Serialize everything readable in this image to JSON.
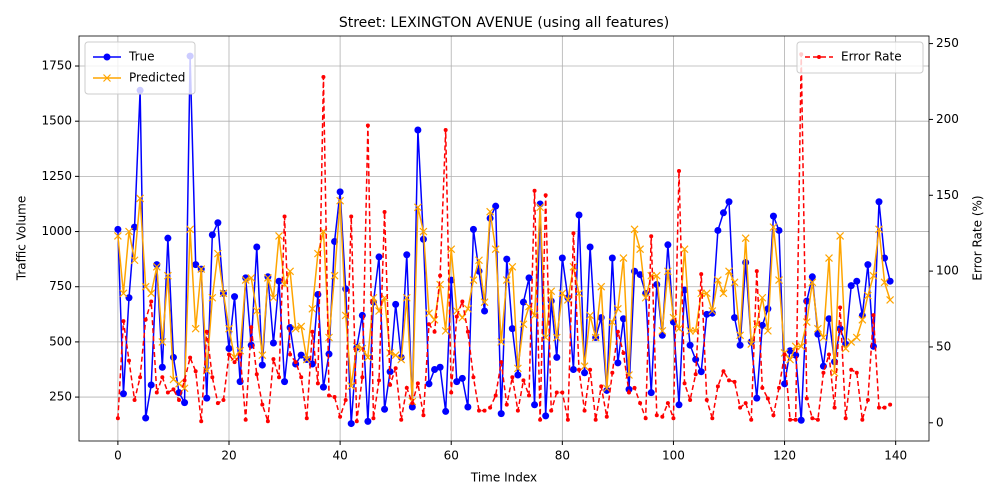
{
  "chart_data": {
    "type": "line",
    "title": "Street: LEXINGTON AVENUE (using all features)",
    "xlabel": "Time Index",
    "ylabel": "Traffic Volume",
    "y2label": "Error Rate (%)",
    "xlim": [
      -7,
      146
    ],
    "xticks": [
      0,
      20,
      40,
      60,
      80,
      100,
      120,
      140
    ],
    "ylim": [
      51,
      1886
    ],
    "yticks": [
      250,
      500,
      750,
      1000,
      1250,
      1500,
      1750
    ],
    "y2lim": [
      -12,
      255
    ],
    "y2ticks": [
      0,
      50,
      100,
      150,
      200,
      250
    ],
    "grid": true,
    "legend": "upper left",
    "legend2": "upper right",
    "series": [
      {
        "name": "True",
        "color": "#0000ff",
        "marker": "o",
        "linestyle": "solid",
        "axis": "y",
        "values": [
          1010,
          265,
          700,
          1020,
          1640,
          155,
          305,
          850,
          385,
          970,
          430,
          270,
          225,
          1795,
          850,
          830,
          245,
          985,
          1040,
          720,
          470,
          705,
          320,
          790,
          485,
          930,
          395,
          795,
          495,
          775,
          320,
          565,
          400,
          440,
          420,
          400,
          715,
          295,
          445,
          955,
          1180,
          740,
          130,
          475,
          620,
          140,
          680,
          885,
          195,
          365,
          670,
          430,
          895,
          205,
          1460,
          965,
          310,
          375,
          385,
          185,
          780,
          320,
          335,
          205,
          1010,
          820,
          640,
          1060,
          1115,
          175,
          875,
          560,
          350,
          680,
          790,
          215,
          1125,
          165,
          685,
          430,
          880,
          700,
          375,
          1075,
          360,
          930,
          520,
          610,
          280,
          880,
          405,
          605,
          285,
          820,
          805,
          720,
          270,
          760,
          530,
          940,
          590,
          215,
          735,
          485,
          420,
          365,
          625,
          630,
          1005,
          1085,
          1135,
          610,
          485,
          860,
          500,
          245,
          575,
          650,
          1070,
          1005,
          310,
          460,
          440,
          145,
          685,
          795,
          535,
          390,
          605,
          410,
          560,
          490,
          755,
          775,
          620,
          850,
          480,
          1135,
          880,
          775
        ]
      },
      {
        "name": "Predicted",
        "color": "#ffa500",
        "marker": "x",
        "linestyle": "solid",
        "axis": "y",
        "values": [
          980,
          720,
          1000,
          870,
          1150,
          750,
          720,
          840,
          500,
          800,
          330,
          310,
          290,
          1010,
          560,
          830,
          370,
          700,
          900,
          720,
          560,
          430,
          460,
          780,
          790,
          640,
          440,
          790,
          700,
          980,
          760,
          820,
          560,
          570,
          420,
          650,
          900,
          1000,
          520,
          800,
          1140,
          620,
          300,
          480,
          470,
          430,
          700,
          640,
          700,
          450,
          440,
          420,
          700,
          230,
          1110,
          1000,
          630,
          600,
          760,
          550,
          920,
          640,
          610,
          650,
          780,
          870,
          680,
          1090,
          920,
          500,
          780,
          840,
          380,
          580,
          660,
          620,
          1110,
          520,
          730,
          520,
          720,
          690,
          840,
          720,
          390,
          620,
          520,
          750,
          290,
          590,
          650,
          880,
          350,
          1010,
          920,
          700,
          800,
          800,
          550,
          820,
          610,
          560,
          920,
          550,
          550,
          720,
          720,
          640,
          780,
          720,
          820,
          770,
          530,
          970,
          490,
          580,
          700,
          550,
          1020,
          780,
          450,
          420,
          480,
          480,
          590,
          770,
          560,
          520,
          880,
          360,
          980,
          470,
          500,
          520,
          600,
          710,
          800,
          1010,
          770,
          690
        ]
      },
      {
        "name": "Error Rate",
        "color": "#ff0000",
        "marker": ".",
        "linestyle": "dashed",
        "axis": "y2",
        "values": [
          3,
          67,
          41,
          15,
          30,
          68,
          80,
          20,
          30,
          20,
          22,
          15,
          28,
          43,
          34,
          1,
          60,
          30,
          13,
          15,
          45,
          40,
          45,
          2,
          63,
          32,
          12,
          1,
          42,
          30,
          136,
          45,
          40,
          30,
          3,
          60,
          26,
          228,
          18,
          17,
          4,
          15,
          136,
          1,
          30,
          196,
          3,
          28,
          139,
          25,
          36,
          2,
          23,
          13,
          26,
          5,
          65,
          60,
          97,
          193,
          20,
          70,
          80,
          60,
          30,
          8,
          8,
          10,
          18,
          40,
          12,
          30,
          8,
          28,
          18,
          153,
          2,
          150,
          8,
          20,
          20,
          2,
          125,
          35,
          8,
          35,
          2,
          24,
          4,
          33,
          60,
          46,
          20,
          23,
          13,
          3,
          123,
          5,
          4,
          13,
          3,
          166,
          26,
          15,
          32,
          98,
          15,
          3,
          24,
          34,
          28,
          27,
          10,
          13,
          2,
          100,
          23,
          16,
          5,
          23,
          45,
          2,
          2,
          243,
          16,
          3,
          2,
          33,
          45,
          10,
          76,
          3,
          35,
          33,
          2,
          15,
          71,
          10,
          10,
          12
        ]
      }
    ]
  }
}
